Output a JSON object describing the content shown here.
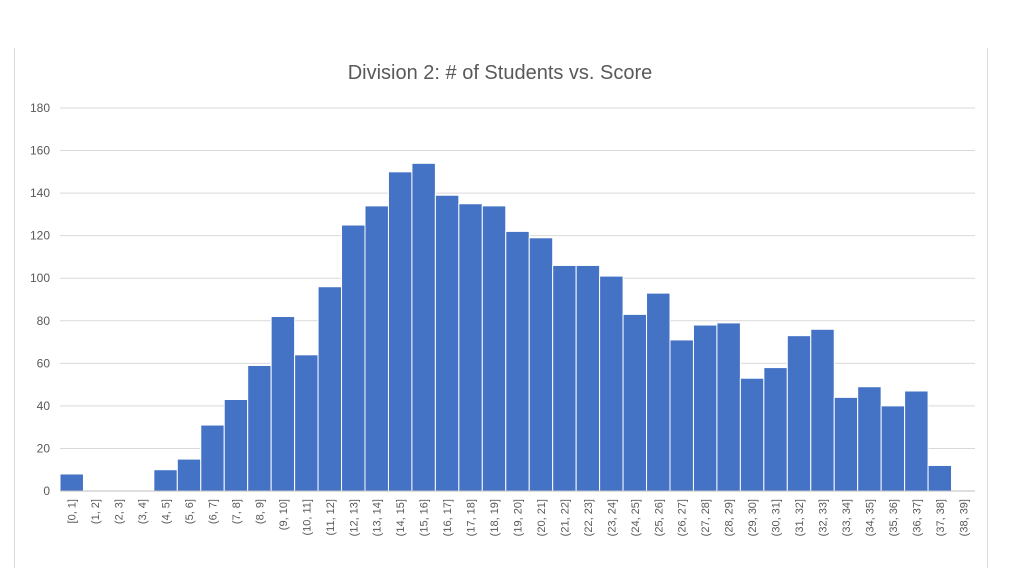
{
  "chart_data": {
    "type": "bar",
    "title": "Division 2: # of Students vs. Score",
    "xlabel": "",
    "ylabel": "",
    "ylim": [
      0,
      180
    ],
    "yticks": [
      0,
      20,
      40,
      60,
      80,
      100,
      120,
      140,
      160,
      180
    ],
    "grid": true,
    "bar_color": "#4472c4",
    "categories": [
      "[0, 1]",
      "(1, 2]",
      "(2, 3]",
      "(3, 4]",
      "(4, 5]",
      "(5, 6]",
      "(6, 7]",
      "(7, 8]",
      "(8, 9]",
      "(9, 10]",
      "(10, 11]",
      "(11, 12]",
      "(12, 13]",
      "(13, 14]",
      "(14, 15]",
      "(15, 16]",
      "(16, 17]",
      "(17, 18]",
      "(18, 19]",
      "(19, 20]",
      "(20, 21]",
      "(21, 22]",
      "(22, 23]",
      "(23, 24]",
      "(24, 25]",
      "(25, 26]",
      "(26, 27]",
      "(27, 28]",
      "(28, 29]",
      "(29, 30]",
      "(30, 31]",
      "(31, 32]",
      "(32, 33]",
      "(33, 34]",
      "(34, 35]",
      "(35, 36]",
      "(36, 37]",
      "(37, 38]",
      "(38, 39]"
    ],
    "values": [
      8,
      0,
      0,
      0,
      10,
      15,
      31,
      43,
      59,
      82,
      64,
      96,
      125,
      134,
      150,
      154,
      139,
      135,
      134,
      122,
      119,
      106,
      106,
      101,
      83,
      93,
      71,
      78,
      79,
      53,
      58,
      73,
      76,
      44,
      49,
      40,
      47,
      12,
      0
    ]
  }
}
